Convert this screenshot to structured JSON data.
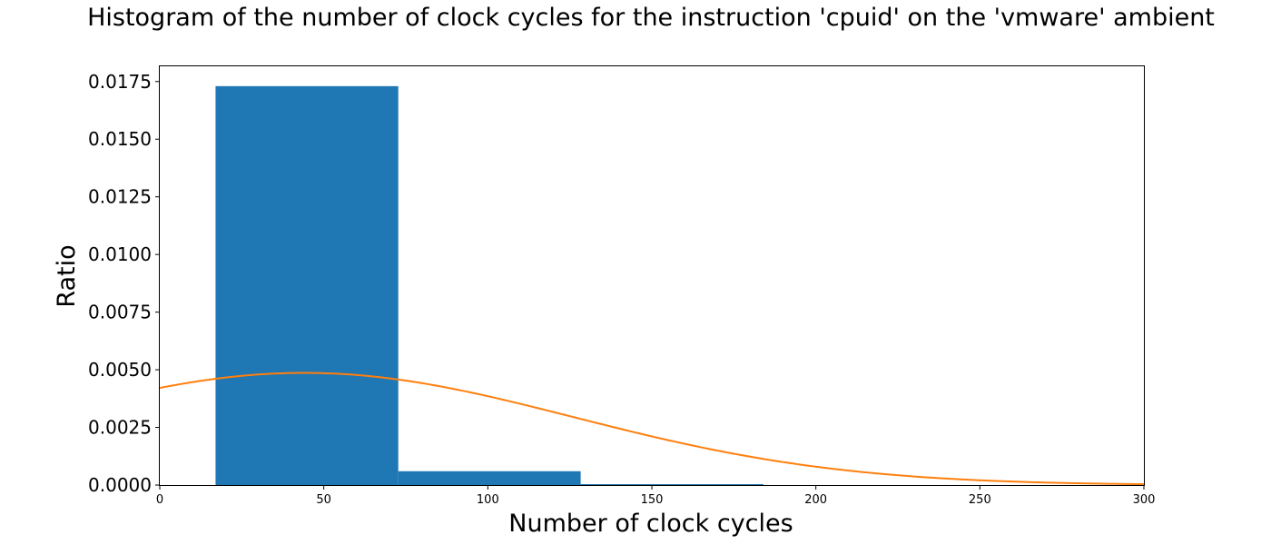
{
  "chart_data": {
    "type": "bar",
    "title": "Histogram of the number of clock cycles for the instruction 'cpuid' on the 'vmware' ambient",
    "xlabel": "Number of clock cycles",
    "ylabel": "Ratio",
    "xlim": [
      0,
      300
    ],
    "ylim": [
      0,
      0.0182
    ],
    "xticks": [
      0,
      50,
      100,
      150,
      200,
      250,
      300
    ],
    "xtick_labels": [
      "0",
      "50",
      "100",
      "150",
      "200",
      "250",
      "300"
    ],
    "yticks": [
      0,
      0.0025,
      0.005,
      0.0075,
      0.01,
      0.0125,
      0.015,
      0.0175
    ],
    "ytick_labels": [
      "0.0000",
      "0.0025",
      "0.0050",
      "0.0075",
      "0.0100",
      "0.0125",
      "0.0150",
      "0.0175"
    ],
    "grid": false,
    "bins": [
      {
        "x0": 17,
        "x1": 72.7,
        "value": 0.0173
      },
      {
        "x0": 72.7,
        "x1": 128.3,
        "value": 0.0006
      },
      {
        "x0": 128.3,
        "x1": 184,
        "value": 4e-05
      }
    ],
    "bar_color": "#1f77b4",
    "curve": {
      "type": "normal-pdf",
      "mean": 44,
      "std": 82,
      "color": "#ff7f0e"
    }
  }
}
